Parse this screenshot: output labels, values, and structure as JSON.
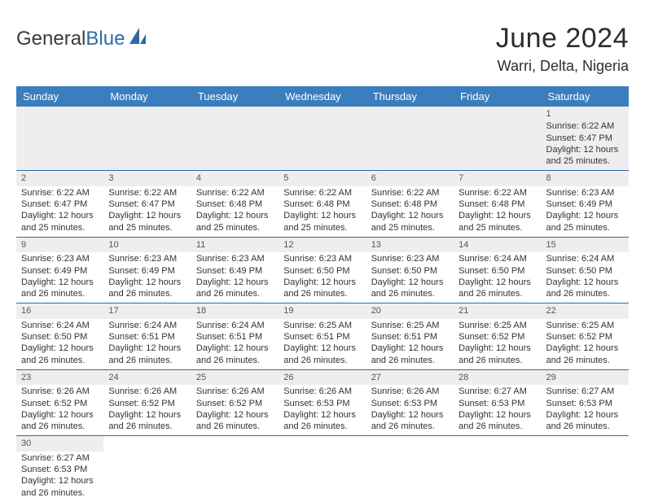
{
  "brand": {
    "name": "General",
    "suffix": "Blue"
  },
  "title": "June 2024",
  "location": "Warri, Delta, Nigeria",
  "colors": {
    "header_bg": "#3b7ebd",
    "header_text": "#ffffff",
    "cell_border": "#2f6aa5",
    "alt_row_bg": "#f3f3f3",
    "text": "#333333",
    "logo_blue": "#2f6aa5"
  },
  "fonts": {
    "title_size_pt": 26,
    "location_size_pt": 14,
    "header_size_pt": 10,
    "cell_size_pt": 8
  },
  "dayNames": [
    "Sunday",
    "Monday",
    "Tuesday",
    "Wednesday",
    "Thursday",
    "Friday",
    "Saturday"
  ],
  "weeks": [
    [
      {
        "blank": true
      },
      {
        "blank": true
      },
      {
        "blank": true
      },
      {
        "blank": true
      },
      {
        "blank": true
      },
      {
        "blank": true
      },
      {
        "num": "1",
        "sunrise": "Sunrise: 6:22 AM",
        "sunset": "Sunset: 6:47 PM",
        "daylight1": "Daylight: 12 hours",
        "daylight2": "and 25 minutes."
      }
    ],
    [
      {
        "num": "2",
        "sunrise": "Sunrise: 6:22 AM",
        "sunset": "Sunset: 6:47 PM",
        "daylight1": "Daylight: 12 hours",
        "daylight2": "and 25 minutes."
      },
      {
        "num": "3",
        "sunrise": "Sunrise: 6:22 AM",
        "sunset": "Sunset: 6:47 PM",
        "daylight1": "Daylight: 12 hours",
        "daylight2": "and 25 minutes."
      },
      {
        "num": "4",
        "sunrise": "Sunrise: 6:22 AM",
        "sunset": "Sunset: 6:48 PM",
        "daylight1": "Daylight: 12 hours",
        "daylight2": "and 25 minutes."
      },
      {
        "num": "5",
        "sunrise": "Sunrise: 6:22 AM",
        "sunset": "Sunset: 6:48 PM",
        "daylight1": "Daylight: 12 hours",
        "daylight2": "and 25 minutes."
      },
      {
        "num": "6",
        "sunrise": "Sunrise: 6:22 AM",
        "sunset": "Sunset: 6:48 PM",
        "daylight1": "Daylight: 12 hours",
        "daylight2": "and 25 minutes."
      },
      {
        "num": "7",
        "sunrise": "Sunrise: 6:22 AM",
        "sunset": "Sunset: 6:48 PM",
        "daylight1": "Daylight: 12 hours",
        "daylight2": "and 25 minutes."
      },
      {
        "num": "8",
        "sunrise": "Sunrise: 6:23 AM",
        "sunset": "Sunset: 6:49 PM",
        "daylight1": "Daylight: 12 hours",
        "daylight2": "and 25 minutes."
      }
    ],
    [
      {
        "num": "9",
        "sunrise": "Sunrise: 6:23 AM",
        "sunset": "Sunset: 6:49 PM",
        "daylight1": "Daylight: 12 hours",
        "daylight2": "and 26 minutes."
      },
      {
        "num": "10",
        "sunrise": "Sunrise: 6:23 AM",
        "sunset": "Sunset: 6:49 PM",
        "daylight1": "Daylight: 12 hours",
        "daylight2": "and 26 minutes."
      },
      {
        "num": "11",
        "sunrise": "Sunrise: 6:23 AM",
        "sunset": "Sunset: 6:49 PM",
        "daylight1": "Daylight: 12 hours",
        "daylight2": "and 26 minutes."
      },
      {
        "num": "12",
        "sunrise": "Sunrise: 6:23 AM",
        "sunset": "Sunset: 6:50 PM",
        "daylight1": "Daylight: 12 hours",
        "daylight2": "and 26 minutes."
      },
      {
        "num": "13",
        "sunrise": "Sunrise: 6:23 AM",
        "sunset": "Sunset: 6:50 PM",
        "daylight1": "Daylight: 12 hours",
        "daylight2": "and 26 minutes."
      },
      {
        "num": "14",
        "sunrise": "Sunrise: 6:24 AM",
        "sunset": "Sunset: 6:50 PM",
        "daylight1": "Daylight: 12 hours",
        "daylight2": "and 26 minutes."
      },
      {
        "num": "15",
        "sunrise": "Sunrise: 6:24 AM",
        "sunset": "Sunset: 6:50 PM",
        "daylight1": "Daylight: 12 hours",
        "daylight2": "and 26 minutes."
      }
    ],
    [
      {
        "num": "16",
        "sunrise": "Sunrise: 6:24 AM",
        "sunset": "Sunset: 6:50 PM",
        "daylight1": "Daylight: 12 hours",
        "daylight2": "and 26 minutes."
      },
      {
        "num": "17",
        "sunrise": "Sunrise: 6:24 AM",
        "sunset": "Sunset: 6:51 PM",
        "daylight1": "Daylight: 12 hours",
        "daylight2": "and 26 minutes."
      },
      {
        "num": "18",
        "sunrise": "Sunrise: 6:24 AM",
        "sunset": "Sunset: 6:51 PM",
        "daylight1": "Daylight: 12 hours",
        "daylight2": "and 26 minutes."
      },
      {
        "num": "19",
        "sunrise": "Sunrise: 6:25 AM",
        "sunset": "Sunset: 6:51 PM",
        "daylight1": "Daylight: 12 hours",
        "daylight2": "and 26 minutes."
      },
      {
        "num": "20",
        "sunrise": "Sunrise: 6:25 AM",
        "sunset": "Sunset: 6:51 PM",
        "daylight1": "Daylight: 12 hours",
        "daylight2": "and 26 minutes."
      },
      {
        "num": "21",
        "sunrise": "Sunrise: 6:25 AM",
        "sunset": "Sunset: 6:52 PM",
        "daylight1": "Daylight: 12 hours",
        "daylight2": "and 26 minutes."
      },
      {
        "num": "22",
        "sunrise": "Sunrise: 6:25 AM",
        "sunset": "Sunset: 6:52 PM",
        "daylight1": "Daylight: 12 hours",
        "daylight2": "and 26 minutes."
      }
    ],
    [
      {
        "num": "23",
        "sunrise": "Sunrise: 6:26 AM",
        "sunset": "Sunset: 6:52 PM",
        "daylight1": "Daylight: 12 hours",
        "daylight2": "and 26 minutes."
      },
      {
        "num": "24",
        "sunrise": "Sunrise: 6:26 AM",
        "sunset": "Sunset: 6:52 PM",
        "daylight1": "Daylight: 12 hours",
        "daylight2": "and 26 minutes."
      },
      {
        "num": "25",
        "sunrise": "Sunrise: 6:26 AM",
        "sunset": "Sunset: 6:52 PM",
        "daylight1": "Daylight: 12 hours",
        "daylight2": "and 26 minutes."
      },
      {
        "num": "26",
        "sunrise": "Sunrise: 6:26 AM",
        "sunset": "Sunset: 6:53 PM",
        "daylight1": "Daylight: 12 hours",
        "daylight2": "and 26 minutes."
      },
      {
        "num": "27",
        "sunrise": "Sunrise: 6:26 AM",
        "sunset": "Sunset: 6:53 PM",
        "daylight1": "Daylight: 12 hours",
        "daylight2": "and 26 minutes."
      },
      {
        "num": "28",
        "sunrise": "Sunrise: 6:27 AM",
        "sunset": "Sunset: 6:53 PM",
        "daylight1": "Daylight: 12 hours",
        "daylight2": "and 26 minutes."
      },
      {
        "num": "29",
        "sunrise": "Sunrise: 6:27 AM",
        "sunset": "Sunset: 6:53 PM",
        "daylight1": "Daylight: 12 hours",
        "daylight2": "and 26 minutes."
      }
    ],
    [
      {
        "num": "30",
        "sunrise": "Sunrise: 6:27 AM",
        "sunset": "Sunset: 6:53 PM",
        "daylight1": "Daylight: 12 hours",
        "daylight2": "and 26 minutes."
      },
      {
        "blank": true
      },
      {
        "blank": true
      },
      {
        "blank": true
      },
      {
        "blank": true
      },
      {
        "blank": true
      },
      {
        "blank": true
      }
    ]
  ]
}
